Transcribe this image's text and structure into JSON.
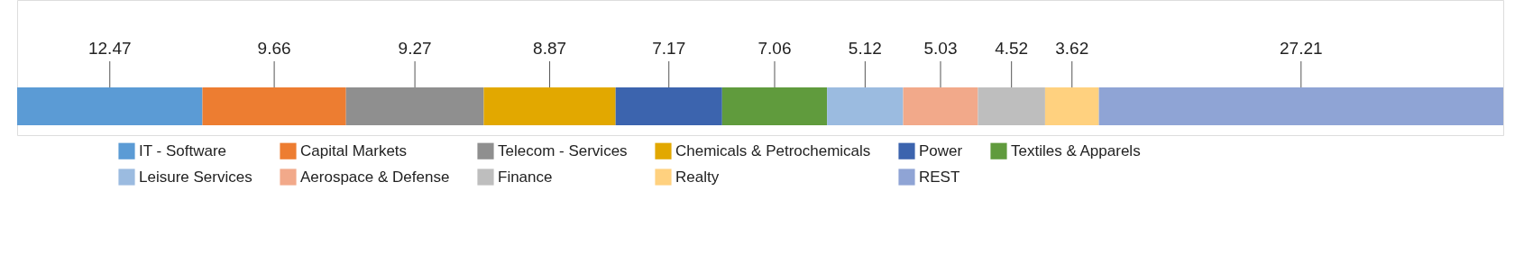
{
  "chart_data": {
    "type": "bar",
    "orientation": "horizontal",
    "stacked": true,
    "categories": [
      null
    ],
    "data_labels": true,
    "legend": "bottom",
    "tick_labels": false,
    "grid": false,
    "series": [
      {
        "name": "IT - Software",
        "color": "#5b9bd5",
        "values": [
          12.47
        ]
      },
      {
        "name": "Capital Markets",
        "color": "#ed7d31",
        "values": [
          9.66
        ]
      },
      {
        "name": "Telecom - Services",
        "color": "#8f8f8f",
        "values": [
          9.27
        ]
      },
      {
        "name": "Chemicals & Petrochemicals",
        "color": "#e2a800",
        "values": [
          8.87
        ]
      },
      {
        "name": "Power",
        "color": "#3c64ae",
        "values": [
          7.17
        ]
      },
      {
        "name": "Textiles & Apparels",
        "color": "#609b3d",
        "values": [
          7.06
        ]
      },
      {
        "name": "Leisure Services",
        "color": "#9bbbe0",
        "values": [
          5.12
        ]
      },
      {
        "name": "Aerospace & Defense",
        "color": "#f2a98a",
        "values": [
          5.03
        ]
      },
      {
        "name": "Finance",
        "color": "#bebebe",
        "values": [
          4.52
        ]
      },
      {
        "name": "Realty",
        "color": "#ffd17f",
        "values": [
          3.62
        ]
      },
      {
        "name": "REST",
        "color": "#8fa4d5",
        "values": [
          27.21
        ]
      }
    ]
  }
}
